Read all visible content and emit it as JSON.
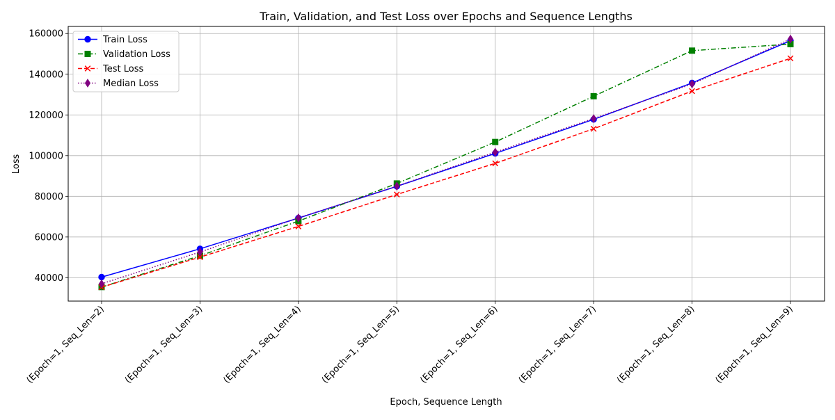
{
  "chart_data": {
    "type": "line",
    "title": "Train, Validation, and Test Loss over Epochs and Sequence Lengths",
    "xlabel": "Epoch, Sequence Length",
    "ylabel": "Loss",
    "categories": [
      "(Epoch=1, Seq_Len=2)",
      "(Epoch=1, Seq_Len=3)",
      "(Epoch=1, Seq_Len=4)",
      "(Epoch=1, Seq_Len=5)",
      "(Epoch=1, Seq_Len=6)",
      "(Epoch=1, Seq_Len=7)",
      "(Epoch=1, Seq_Len=8)",
      "(Epoch=1, Seq_Len=9)"
    ],
    "ylim": [
      28500,
      163500
    ],
    "yticks": [
      40000,
      60000,
      80000,
      100000,
      120000,
      140000,
      160000
    ],
    "ytick_labels": [
      "40000",
      "60000",
      "80000",
      "100000",
      "120000",
      "140000",
      "160000"
    ],
    "grid": true,
    "legend_position": "top-left",
    "series": [
      {
        "name": "Train Loss",
        "color": "#0000ff",
        "linestyle": "solid",
        "marker": "circle",
        "values": [
          40300,
          54200,
          69300,
          84900,
          101100,
          117800,
          135700,
          156500
        ]
      },
      {
        "name": "Validation Loss",
        "color": "#008000",
        "linestyle": "dash-dot",
        "marker": "square",
        "values": [
          35400,
          50800,
          67800,
          86300,
          106700,
          129200,
          151600,
          154800
        ]
      },
      {
        "name": "Test Loss",
        "color": "#ff0000",
        "linestyle": "dashed",
        "marker": "x",
        "values": [
          35300,
          50100,
          65200,
          80900,
          96200,
          113200,
          131700,
          147800
        ]
      },
      {
        "name": "Median Loss",
        "color": "#800080",
        "linestyle": "dotted",
        "marker": "thin-diamond",
        "values": [
          37000,
          52600,
          69400,
          85000,
          101700,
          118200,
          135200,
          157300
        ]
      }
    ]
  }
}
